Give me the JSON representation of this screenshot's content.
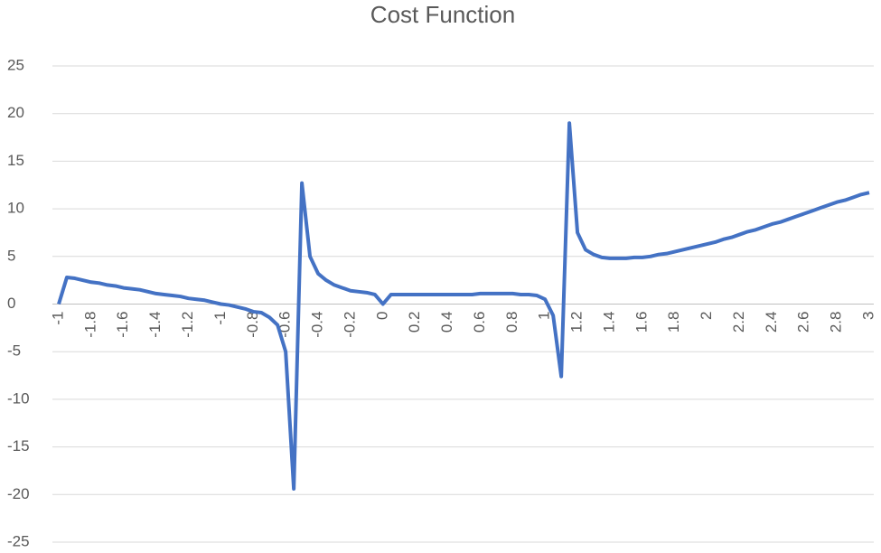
{
  "chart_data": {
    "type": "line",
    "title": "Cost Function",
    "categories": [
      "-1",
      null,
      null,
      null,
      "-1.8",
      null,
      null,
      null,
      "-1.6",
      null,
      null,
      null,
      "-1.4",
      null,
      null,
      null,
      "-1.2",
      null,
      null,
      null,
      "-1",
      null,
      null,
      null,
      "-0.8",
      null,
      null,
      null,
      "-0.6",
      null,
      null,
      null,
      "-0.4",
      null,
      null,
      null,
      "-0.2",
      null,
      null,
      null,
      "0",
      null,
      null,
      null,
      "0.2",
      null,
      null,
      null,
      "0.4",
      null,
      null,
      null,
      "0.6",
      null,
      null,
      null,
      "0.8",
      null,
      null,
      null,
      "1",
      null,
      null,
      null,
      "1.2",
      null,
      null,
      null,
      "1.4",
      null,
      null,
      null,
      "1.6",
      null,
      null,
      null,
      "1.8",
      null,
      null,
      null,
      "2",
      null,
      null,
      null,
      "2.2",
      null,
      null,
      null,
      "2.4",
      null,
      null,
      null,
      "2.6",
      null,
      null,
      null,
      "2.8",
      null,
      null,
      null,
      "3"
    ],
    "values": [
      0,
      2.8,
      2.7,
      2.5,
      2.3,
      2.2,
      2.0,
      1.9,
      1.7,
      1.6,
      1.5,
      1.3,
      1.1,
      1.0,
      0.9,
      0.8,
      0.6,
      0.5,
      0.4,
      0.2,
      0.0,
      -0.1,
      -0.3,
      -0.5,
      -0.8,
      -0.9,
      -1.4,
      -2.2,
      -5,
      -19.4,
      12.7,
      5,
      3.2,
      2.5,
      2.0,
      1.7,
      1.4,
      1.3,
      1.2,
      1.0,
      0.0,
      1.0,
      1.0,
      1.0,
      1.0,
      1.0,
      1.0,
      1.0,
      1.0,
      1.0,
      1.0,
      1.0,
      1.1,
      1.1,
      1.1,
      1.1,
      1.1,
      1.0,
      1.0,
      0.9,
      0.5,
      -1.2,
      -7.6,
      19.0,
      7.5,
      5.7,
      5.2,
      4.9,
      4.8,
      4.8,
      4.8,
      4.9,
      4.9,
      5.0,
      5.2,
      5.3,
      5.5,
      5.7,
      5.9,
      6.1,
      6.3,
      6.5,
      6.8,
      7.0,
      7.3,
      7.6,
      7.8,
      8.1,
      8.4,
      8.6,
      8.9,
      9.2,
      9.5,
      9.8,
      10.1,
      10.4,
      10.7,
      10.9,
      11.2,
      11.5,
      11.7
    ],
    "color": "#4472c4",
    "ylim": [
      -25,
      25
    ],
    "yticks": [
      -25,
      -20,
      -15,
      -10,
      -5,
      0,
      5,
      10,
      15,
      20,
      25
    ],
    "grid": true
  }
}
